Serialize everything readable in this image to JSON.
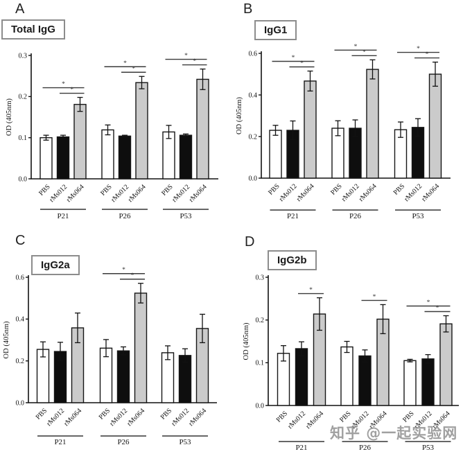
{
  "watermark": {
    "text": "知乎 @一起实验网"
  },
  "series_colors": {
    "PBS": "#ffffff",
    "rMs012": "#0e0e0e",
    "rMs064": "#cbcbcb"
  },
  "chart_data": [
    {
      "panel": "A",
      "type": "bar",
      "title": "Total IgG",
      "ylabel": "OD (405nm)",
      "ylim": [
        0,
        0.3
      ],
      "yticks": [
        "0.0",
        "0.1",
        "0.2",
        "0.3"
      ],
      "groups": [
        "P21",
        "P26",
        "P53"
      ],
      "series": [
        "PBS",
        "rMs012",
        "rMs064"
      ],
      "values": [
        [
          0.1,
          0.102,
          0.181
        ],
        [
          0.119,
          0.104,
          0.234
        ],
        [
          0.114,
          0.106,
          0.242
        ]
      ],
      "errors": [
        [
          0.006,
          0.004,
          0.017
        ],
        [
          0.012,
          0.002,
          0.015
        ],
        [
          0.016,
          0.003,
          0.025
        ]
      ],
      "significance": [
        {
          "group": 0,
          "from": 0,
          "to": 2,
          "label": "*"
        },
        {
          "group": 0,
          "from": 1,
          "to": 2,
          "label": "*"
        },
        {
          "group": 1,
          "from": 0,
          "to": 2,
          "label": "*"
        },
        {
          "group": 1,
          "from": 1,
          "to": 2,
          "label": "*"
        },
        {
          "group": 2,
          "from": 0,
          "to": 2,
          "label": "*"
        },
        {
          "group": 2,
          "from": 1,
          "to": 2,
          "label": "*"
        }
      ],
      "legend": "none",
      "grid": false
    },
    {
      "panel": "B",
      "type": "bar",
      "title": "IgG1",
      "ylabel": "OD (405nm)",
      "ylim": [
        0,
        0.6
      ],
      "yticks": [
        "0.0",
        "0.2",
        "0.4",
        "0.6"
      ],
      "groups": [
        "P21",
        "P26",
        "P53"
      ],
      "series": [
        "PBS",
        "rMs012",
        "rMs064"
      ],
      "values": [
        [
          0.23,
          0.23,
          0.467
        ],
        [
          0.24,
          0.24,
          0.523
        ],
        [
          0.233,
          0.244,
          0.5
        ]
      ],
      "errors": [
        [
          0.024,
          0.045,
          0.048
        ],
        [
          0.036,
          0.04,
          0.046
        ],
        [
          0.037,
          0.042,
          0.058
        ]
      ],
      "significance": [
        {
          "group": 0,
          "from": 0,
          "to": 2,
          "label": "*"
        },
        {
          "group": 0,
          "from": 1,
          "to": 2,
          "label": "*"
        },
        {
          "group": 1,
          "from": 0,
          "to": 2,
          "label": "*"
        },
        {
          "group": 1,
          "from": 1,
          "to": 2,
          "label": "*"
        },
        {
          "group": 2,
          "from": 0,
          "to": 2,
          "label": "*"
        },
        {
          "group": 2,
          "from": 1,
          "to": 2,
          "label": "*"
        }
      ],
      "legend": "none",
      "grid": false
    },
    {
      "panel": "C",
      "type": "bar",
      "title": "IgG2a",
      "ylabel": "OD (405nm)",
      "ylim": [
        0,
        0.6
      ],
      "yticks": [
        "0.0",
        "0.2",
        "0.4",
        "0.6"
      ],
      "groups": [
        "P21",
        "P26",
        "P53"
      ],
      "series": [
        "PBS",
        "rMs012",
        "rMs064"
      ],
      "values": [
        [
          0.255,
          0.245,
          0.358
        ],
        [
          0.261,
          0.248,
          0.524
        ],
        [
          0.239,
          0.226,
          0.355
        ]
      ],
      "errors": [
        [
          0.036,
          0.044,
          0.071
        ],
        [
          0.041,
          0.019,
          0.047
        ],
        [
          0.033,
          0.032,
          0.068
        ]
      ],
      "significance": [
        {
          "group": 1,
          "from": 0,
          "to": 2,
          "label": "*"
        },
        {
          "group": 1,
          "from": 1,
          "to": 2,
          "label": "*"
        }
      ],
      "legend": "none",
      "grid": false
    },
    {
      "panel": "D",
      "type": "bar",
      "title": "IgG2b",
      "ylabel": "OD (405nm)",
      "ylim": [
        0,
        0.3
      ],
      "yticks": [
        "0.0",
        "0.1",
        "0.2",
        "0.3"
      ],
      "groups": [
        "P21",
        "P26",
        "P53"
      ],
      "series": [
        "PBS",
        "rMs012",
        "rMs064"
      ],
      "values": [
        [
          0.122,
          0.133,
          0.214
        ],
        [
          0.137,
          0.116,
          0.202
        ],
        [
          0.105,
          0.109,
          0.191
        ]
      ],
      "errors": [
        [
          0.018,
          0.016,
          0.038
        ],
        [
          0.013,
          0.014,
          0.034
        ],
        [
          0.003,
          0.01,
          0.019
        ]
      ],
      "significance": [
        {
          "group": 0,
          "from": 1,
          "to": 2,
          "label": "*"
        },
        {
          "group": 1,
          "from": 1,
          "to": 2,
          "label": "*"
        },
        {
          "group": 2,
          "from": 0,
          "to": 2,
          "label": "*"
        },
        {
          "group": 2,
          "from": 1,
          "to": 2,
          "label": "*"
        }
      ],
      "legend": "none",
      "grid": false
    }
  ]
}
